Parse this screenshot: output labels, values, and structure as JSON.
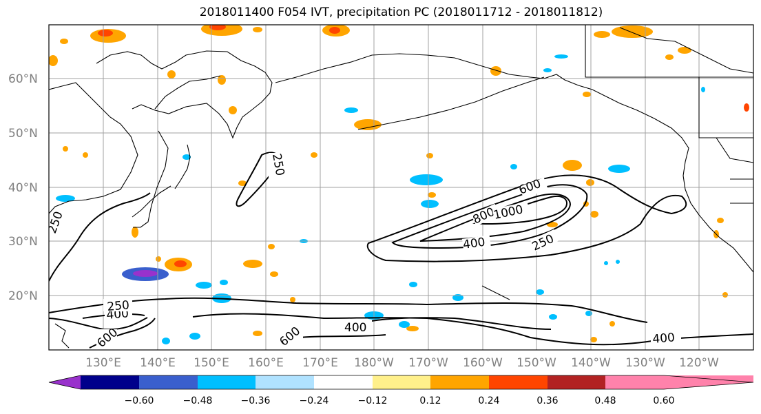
{
  "title": "2018011400 F054 IVT, precipitation PC (2018011712 - 2018011812)",
  "map": {
    "lat_labels": [
      "60°N",
      "50°N",
      "40°N",
      "30°N",
      "20°N"
    ],
    "lon_labels": [
      "130°E",
      "140°E",
      "150°E",
      "160°E",
      "170°E",
      "180°W",
      "170°W",
      "160°W",
      "150°W",
      "140°W",
      "130°W",
      "120°W"
    ],
    "contour_labels": [
      "250",
      "600",
      "800",
      "1000",
      "400",
      "250",
      "250",
      "400",
      "600",
      "600",
      "400",
      "400",
      "250"
    ]
  },
  "colorbar": {
    "colors": [
      "#9932cc",
      "#00008b",
      "#3a5fcd",
      "#00bfff",
      "#b0e2ff",
      "#ffffff",
      "#fff08b",
      "#ffa500",
      "#ff4500",
      "#b22222",
      "#ff82ab"
    ],
    "ticks": [
      "−0.60",
      "−0.48",
      "−0.36",
      "−0.24",
      "−0.12",
      "0.12",
      "0.24",
      "0.36",
      "0.48",
      "0.60"
    ]
  },
  "colors": {
    "grid": "#a0a0a0",
    "contour": "#000000",
    "coast": "#000000"
  }
}
